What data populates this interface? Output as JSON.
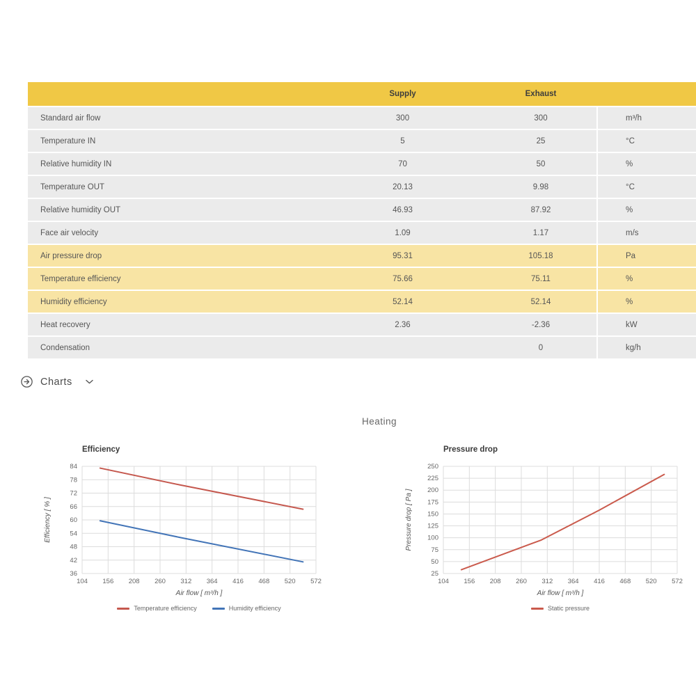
{
  "colors": {
    "header_yellow": "#f0c845",
    "highlight_yellow": "#f8e4a4",
    "row_gray": "#ebebeb",
    "temperature_red": "#c5584e",
    "humidity_blue": "#4274b7",
    "static_red": "#ca5a4c",
    "grid_gray": "#dcdcdc"
  },
  "table": {
    "columns": {
      "supply": "Supply",
      "exhaust": "Exhaust"
    },
    "rows": [
      {
        "label": "Standard air flow",
        "supply": "300",
        "exhaust": "300",
        "unit": "m³/h",
        "highlight": false
      },
      {
        "label": "Temperature IN",
        "supply": "5",
        "exhaust": "25",
        "unit": "°C",
        "highlight": false
      },
      {
        "label": "Relative humidity IN",
        "supply": "70",
        "exhaust": "50",
        "unit": "%",
        "highlight": false
      },
      {
        "label": "Temperature OUT",
        "supply": "20.13",
        "exhaust": "9.98",
        "unit": "°C",
        "highlight": false
      },
      {
        "label": "Relative humidity OUT",
        "supply": "46.93",
        "exhaust": "87.92",
        "unit": "%",
        "highlight": false
      },
      {
        "label": "Face air velocity",
        "supply": "1.09",
        "exhaust": "1.17",
        "unit": "m/s",
        "highlight": false
      },
      {
        "label": "Air pressure drop",
        "supply": "95.31",
        "exhaust": "105.18",
        "unit": "Pa",
        "highlight": true
      },
      {
        "label": "Temperature efficiency",
        "supply": "75.66",
        "exhaust": "75.11",
        "unit": "%",
        "highlight": true
      },
      {
        "label": "Humidity efficiency",
        "supply": "52.14",
        "exhaust": "52.14",
        "unit": "%",
        "highlight": true
      },
      {
        "label": "Heat recovery",
        "supply": "2.36",
        "exhaust": "-2.36",
        "unit": "kW",
        "highlight": false
      },
      {
        "label": "Condensation",
        "supply": "",
        "exhaust": "0",
        "unit": "kg/h",
        "highlight": false
      }
    ]
  },
  "charts_section": {
    "label": "Charts"
  },
  "group_title": "Heating",
  "chart_data": [
    {
      "type": "line",
      "title": "Efficiency",
      "xlabel": "Air flow [ m³/h ]",
      "ylabel": "Efficiency [ % ]",
      "xlim": [
        104,
        572
      ],
      "ylim": [
        36,
        84
      ],
      "xticks": [
        104,
        156,
        208,
        260,
        312,
        364,
        416,
        468,
        520,
        572
      ],
      "yticks": [
        36,
        42,
        48,
        54,
        60,
        66,
        72,
        78,
        84
      ],
      "grid": true,
      "legend_position": "bottom",
      "series": [
        {
          "name": "Temperature efficiency",
          "color": "#c5584e",
          "x": [
            140,
            300,
            546
          ],
          "y": [
            83.2,
            75.66,
            64.8
          ]
        },
        {
          "name": "Humidity efficiency",
          "color": "#4274b7",
          "x": [
            140,
            300,
            546
          ],
          "y": [
            59.6,
            52.14,
            41.2
          ]
        }
      ]
    },
    {
      "type": "line",
      "title": "Pressure drop",
      "xlabel": "Air flow [ m³/h ]",
      "ylabel": "Pressure drop [ Pa ]",
      "xlim": [
        104,
        572
      ],
      "ylim": [
        25,
        250
      ],
      "xticks": [
        104,
        156,
        208,
        260,
        312,
        364,
        416,
        468,
        520,
        572
      ],
      "yticks": [
        25,
        50,
        75,
        100,
        125,
        150,
        175,
        200,
        225,
        250
      ],
      "grid": true,
      "legend_position": "bottom",
      "series": [
        {
          "name": "Static pressure",
          "color": "#ca5a4c",
          "x": [
            140,
            300,
            416,
            546
          ],
          "y": [
            33,
            95.31,
            158,
            233
          ]
        }
      ]
    }
  ]
}
